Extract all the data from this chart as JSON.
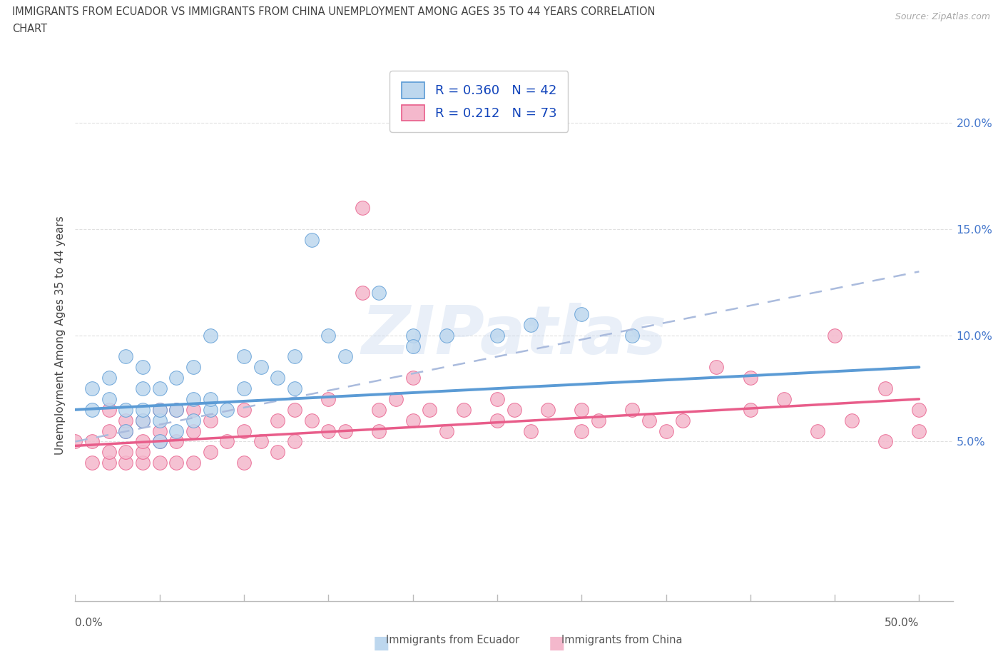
{
  "title_line1": "IMMIGRANTS FROM ECUADOR VS IMMIGRANTS FROM CHINA UNEMPLOYMENT AMONG AGES 35 TO 44 YEARS CORRELATION",
  "title_line2": "CHART",
  "source_text": "Source: ZipAtlas.com",
  "ylabel": "Unemployment Among Ages 35 to 44 years",
  "xlim": [
    0.0,
    0.52
  ],
  "ylim": [
    -0.025,
    0.225
  ],
  "yticks": [
    0.05,
    0.1,
    0.15,
    0.2
  ],
  "ytick_labels": [
    "5.0%",
    "10.0%",
    "15.0%",
    "20.0%"
  ],
  "ecuador_color": "#5b9bd5",
  "ecuador_face": "#bdd7ee",
  "china_color": "#e85d8a",
  "china_face": "#f4b8cc",
  "ecuador_R": 0.36,
  "ecuador_N": 42,
  "china_R": 0.212,
  "china_N": 73,
  "legend_label_ecuador": "Immigrants from Ecuador",
  "legend_label_china": "Immigrants from China",
  "ecuador_x": [
    0.01,
    0.01,
    0.02,
    0.02,
    0.03,
    0.03,
    0.03,
    0.04,
    0.04,
    0.04,
    0.04,
    0.05,
    0.05,
    0.05,
    0.05,
    0.06,
    0.06,
    0.06,
    0.07,
    0.07,
    0.07,
    0.08,
    0.08,
    0.08,
    0.09,
    0.1,
    0.1,
    0.11,
    0.12,
    0.13,
    0.13,
    0.14,
    0.15,
    0.16,
    0.18,
    0.2,
    0.2,
    0.22,
    0.25,
    0.27,
    0.3,
    0.33
  ],
  "ecuador_y": [
    0.065,
    0.075,
    0.07,
    0.08,
    0.055,
    0.065,
    0.09,
    0.06,
    0.065,
    0.075,
    0.085,
    0.05,
    0.06,
    0.065,
    0.075,
    0.055,
    0.065,
    0.08,
    0.06,
    0.07,
    0.085,
    0.065,
    0.07,
    0.1,
    0.065,
    0.09,
    0.075,
    0.085,
    0.08,
    0.075,
    0.09,
    0.145,
    0.1,
    0.09,
    0.12,
    0.1,
    0.095,
    0.1,
    0.1,
    0.105,
    0.11,
    0.1
  ],
  "china_x": [
    0.0,
    0.01,
    0.01,
    0.02,
    0.02,
    0.02,
    0.02,
    0.03,
    0.03,
    0.03,
    0.03,
    0.04,
    0.04,
    0.04,
    0.04,
    0.05,
    0.05,
    0.05,
    0.05,
    0.06,
    0.06,
    0.06,
    0.07,
    0.07,
    0.07,
    0.08,
    0.08,
    0.09,
    0.1,
    0.1,
    0.1,
    0.11,
    0.12,
    0.12,
    0.13,
    0.13,
    0.14,
    0.15,
    0.15,
    0.16,
    0.17,
    0.18,
    0.18,
    0.19,
    0.2,
    0.2,
    0.21,
    0.22,
    0.23,
    0.25,
    0.25,
    0.26,
    0.27,
    0.28,
    0.3,
    0.3,
    0.31,
    0.33,
    0.34,
    0.35,
    0.36,
    0.38,
    0.4,
    0.4,
    0.42,
    0.44,
    0.46,
    0.48,
    0.5,
    0.45,
    0.48,
    0.5,
    0.17
  ],
  "china_y": [
    0.05,
    0.04,
    0.05,
    0.04,
    0.045,
    0.055,
    0.065,
    0.04,
    0.045,
    0.055,
    0.06,
    0.04,
    0.045,
    0.05,
    0.06,
    0.04,
    0.05,
    0.055,
    0.065,
    0.04,
    0.05,
    0.065,
    0.04,
    0.055,
    0.065,
    0.045,
    0.06,
    0.05,
    0.04,
    0.055,
    0.065,
    0.05,
    0.045,
    0.06,
    0.05,
    0.065,
    0.06,
    0.055,
    0.07,
    0.055,
    0.12,
    0.055,
    0.065,
    0.07,
    0.06,
    0.08,
    0.065,
    0.055,
    0.065,
    0.06,
    0.07,
    0.065,
    0.055,
    0.065,
    0.055,
    0.065,
    0.06,
    0.065,
    0.06,
    0.055,
    0.06,
    0.085,
    0.08,
    0.065,
    0.07,
    0.055,
    0.06,
    0.075,
    0.065,
    0.1,
    0.05,
    0.055,
    0.16
  ],
  "ecuador_line_x0": 0.0,
  "ecuador_line_y0": 0.065,
  "ecuador_line_x1": 0.5,
  "ecuador_line_y1": 0.085,
  "china_line_x0": 0.0,
  "china_line_y0": 0.048,
  "china_line_x1": 0.5,
  "china_line_y1": 0.07,
  "dashed_line_x0": 0.0,
  "dashed_line_y0": 0.05,
  "dashed_line_x1": 0.5,
  "dashed_line_y1": 0.13,
  "watermark": "ZIPatlas",
  "background_color": "#ffffff",
  "grid_color": "#dddddd"
}
